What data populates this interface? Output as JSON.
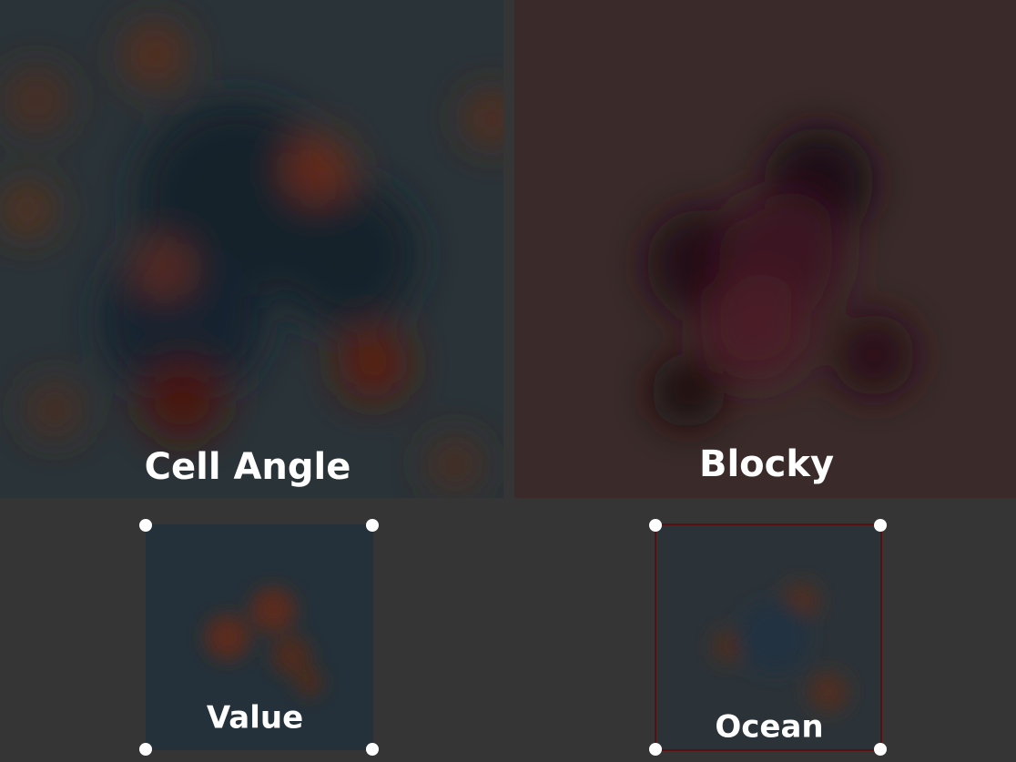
{
  "panels": [
    {
      "label": "Cell Angle"
    },
    {
      "label": "Blocky"
    },
    {
      "label": "Value"
    },
    {
      "label": "Ocean"
    }
  ]
}
